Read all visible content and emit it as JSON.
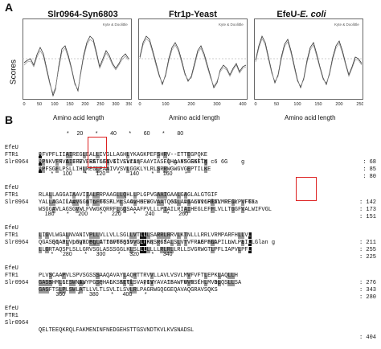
{
  "panel_a": {
    "letter": "A",
    "y_label": "Scores",
    "x_label": "Amino acid length",
    "plots": [
      {
        "title": "Slr0964-Syn6803",
        "x_ticks": [
          "0",
          "50",
          "100",
          "150",
          "200",
          "250",
          "300",
          "350"
        ],
        "legend": "Kyte & Doolittle"
      },
      {
        "title": "Ftr1p-Yeast",
        "x_ticks": [
          "0",
          "100",
          "200",
          "300",
          "400"
        ],
        "legend": "Kyte & Doolittle"
      },
      {
        "title_main": "EfeU-",
        "title_italic": "E. coli",
        "x_ticks": [
          "0",
          "50",
          "100",
          "150",
          "200",
          "250"
        ],
        "legend": "Kyte & Doolittle"
      }
    ]
  },
  "panel_b": {
    "letter": "B",
    "blocks": [
      {
        "ruler": "                  *     20        *        40        *        60        *        80",
        "rows": [
          {
            "name": "EfeU",
            "seq": "MFVPFLIIAIREGLEALLIVGLLAGHLYKAGKPEFSHRV--ETTEGPQKE",
            "count": ": 68"
          },
          {
            "name": "FTR1",
            "seq": "MPNKVFNVAIFFVVFRETLEAVIIVSVIISFAAYIASEQHAAYSGEKFTK",
            "count": ": 85"
          },
          {
            "name": "Slr0964",
            "seq": "MPFSGFLPSLLIHLREGLEAAIVVSVLGGKLYLRLSRRWGWGVGEPTILKE",
            "count": ": 80"
          }
        ],
        "cons": "      F 6 IRE LEA 666 6l Lkraq        l g 65 G6llg c6 6G    g"
      },
      {
        "ruler": "        *      100        *      120        *      140        *      160        *",
        "rows": [
          {
            "name": "EfeU",
            "seq": "RLALLAGGAIAAVIIALFRPAAGLLQHLLPLGPVGAAIGAALGAGLALGTGIF",
            "count": ": 142"
          },
          {
            "name": "FTR1",
            "seq": "YALLAGAILAAVLGITLFTTSFLMLSAGLHHEWGVAATQGILAVIALVILHFTLMREGYPVFTF",
            "count": ": 173"
          },
          {
            "name": "Slr0964",
            "seq": "WSGGAVLAGSGVWLFVWGKQRRFLGQSAAAFPVLLLPIAILRIAIHEGLEFFLVLLTGGFVALWIFVGL",
            "count": ": 151"
          }
        ],
        "cons": "        lAv 6 6 6 66 K  r  4v 6 6      6G  A6 66v6FlaV REGL  F6aa"
      },
      {
        "ruler": "    180        *      200        *      220        *      240        *      260",
        "rows": [
          {
            "name": "EfeU",
            "seq": "LIGVLWGALNVANIVPLLVLLVLLSGLLVTLLLSARRLRRVLKTNLLLRRLVRMPARFHLLVL",
            "count": ": 211"
          },
          {
            "name": "FTR1",
            "seq": "QGASSIAPLVLGVFDPLLATIGFTFSIVVGLLKRSRGSALSLVTVFRAEPFLAPILLWLPLILL",
            "count": ": 255"
          },
          {
            "name": "Slr0964",
            "seq": "LLGRTAQSPLSLLGRVSGLASSSGGLKLSLLLLLLLRLRLLRLLSVGRWGTLPFLIAPVLPFL",
            "count": ": 225"
          }
        ],
        "cons": "    Qq a  p6ga 6g 6 tav66g55 G 1nq  Ff         16 aGL   n   a   Glan g"
      },
      {
        "ruler": "        *      280        *      300        *      320        *      340",
        "rows": [
          {
            "name": "EfeU",
            "seq": "PLVSCAAPVLSPVSGSSSAAQAVAYLAQRTTRVVLLAVLVSVLMVFVFTLEPKLAQLLH",
            "count": ": 276"
          },
          {
            "name": "FTR1",
            "seq": "GASSHMLLESWNAVYPGSPHALKSKLTLSVAFIVYAVAIFAWFWVRSLHLMVDLQSLLSA",
            "count": ": 343"
          },
          {
            "name": "Slr0964",
            "seq": "GASFTSLPLSWLATLLVLTLSVLILSVLRLPAGRWGQGGEQAVAQGRAVSQKS",
            "count": ": 280"
          }
        ],
        "cons": "   s   6    1p    g  6  5Ftl   y6s    15   6 6 f    ap"
      },
      {
        "ruler": "           360        *      380        *      400        *",
        "rows": [
          {
            "name": "EfeU",
            "seq": "",
            "count": ""
          },
          {
            "name": "FTR1",
            "seq": "",
            "count": ""
          },
          {
            "name": "Slr0964",
            "seq": "QELTEEQKRQLFAKMENINFNEDGEHSTTGSVNDTKVLKVSNADSL",
            "count": ": 404"
          }
        ],
        "cons": ""
      }
    ]
  }
}
